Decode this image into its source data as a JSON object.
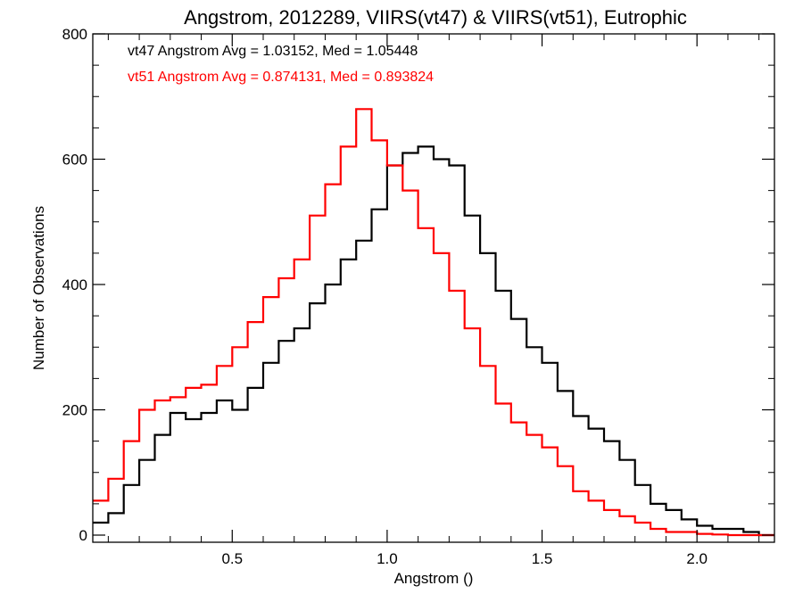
{
  "chart_data": {
    "type": "line",
    "step": true,
    "title": "Angstrom, 2012289, VIIRS(vt47) & VIIRS(vt51), Eutrophic",
    "xlabel": "Angstrom ()",
    "ylabel": "Number of Observations",
    "xlim": [
      0.05,
      2.25
    ],
    "ylim": [
      0,
      800
    ],
    "xticks": [
      0.5,
      1.0,
      1.5,
      2.0
    ],
    "xtick_labels": [
      "0.5",
      "1.0",
      "1.5",
      "2.0"
    ],
    "yticks": [
      0,
      200,
      400,
      600,
      800
    ],
    "ytick_labels": [
      "0",
      "200",
      "400",
      "600",
      "800"
    ],
    "grid": false,
    "annotations": [
      {
        "text": "vt47 Angstrom Avg = 1.03152, Med = 1.05448",
        "color": "#000000"
      },
      {
        "text": "vt51 Angstrom Avg = 0.874131, Med = 0.893824",
        "color": "#ff0000"
      }
    ],
    "series": [
      {
        "color": "#000000",
        "x": [
          0.05,
          0.1,
          0.15,
          0.2,
          0.25,
          0.3,
          0.35,
          0.4,
          0.45,
          0.5,
          0.55,
          0.6,
          0.65,
          0.7,
          0.75,
          0.8,
          0.85,
          0.9,
          0.95,
          1.0,
          1.05,
          1.1,
          1.15,
          1.2,
          1.25,
          1.3,
          1.35,
          1.4,
          1.45,
          1.5,
          1.55,
          1.6,
          1.65,
          1.7,
          1.75,
          1.8,
          1.85,
          1.9,
          1.95,
          2.0,
          2.05,
          2.1,
          2.15,
          2.2
        ],
        "y": [
          20,
          35,
          80,
          120,
          160,
          195,
          185,
          195,
          215,
          200,
          235,
          275,
          310,
          330,
          370,
          400,
          440,
          470,
          520,
          590,
          610,
          620,
          600,
          590,
          510,
          450,
          390,
          345,
          300,
          275,
          230,
          190,
          170,
          150,
          120,
          80,
          50,
          40,
          25,
          15,
          10,
          10,
          5,
          0
        ]
      },
      {
        "color": "#ff0000",
        "x": [
          0.05,
          0.1,
          0.15,
          0.2,
          0.25,
          0.3,
          0.35,
          0.4,
          0.45,
          0.5,
          0.55,
          0.6,
          0.65,
          0.7,
          0.75,
          0.8,
          0.85,
          0.9,
          0.95,
          1.0,
          1.05,
          1.1,
          1.15,
          1.2,
          1.25,
          1.3,
          1.35,
          1.4,
          1.45,
          1.5,
          1.55,
          1.6,
          1.65,
          1.7,
          1.75,
          1.8,
          1.85,
          1.9,
          1.95,
          2.0,
          2.05,
          2.1,
          2.15,
          2.2
        ],
        "y": [
          55,
          90,
          150,
          200,
          215,
          220,
          235,
          240,
          270,
          300,
          340,
          380,
          410,
          440,
          510,
          560,
          620,
          680,
          630,
          590,
          550,
          490,
          450,
          390,
          330,
          270,
          210,
          180,
          160,
          140,
          110,
          70,
          55,
          40,
          30,
          20,
          10,
          5,
          5,
          2,
          1,
          0,
          0,
          0
        ]
      }
    ]
  }
}
